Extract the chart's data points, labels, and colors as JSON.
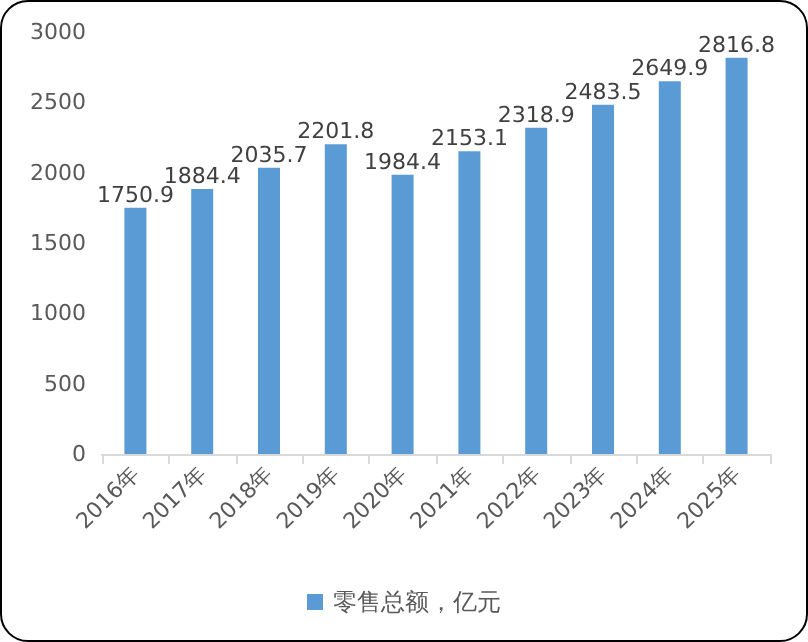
{
  "chart_data": {
    "type": "bar",
    "categories": [
      "2016年",
      "2017年",
      "2018年",
      "2019年",
      "2020年",
      "2021年",
      "2022年",
      "2023年",
      "2024年",
      "2025年"
    ],
    "series": [
      {
        "name": "零售总额，亿元",
        "color": "#5b9bd5",
        "values": [
          1750.9,
          1884.4,
          2035.7,
          2201.8,
          1984.4,
          2153.1,
          2318.9,
          2483.5,
          2649.9,
          2816.8
        ]
      }
    ],
    "ylim": [
      0,
      3000
    ],
    "yticks": [
      0,
      500,
      1000,
      1500,
      2000,
      2500,
      3000
    ],
    "grid": false,
    "legend": "bottom",
    "data_labels": true
  }
}
